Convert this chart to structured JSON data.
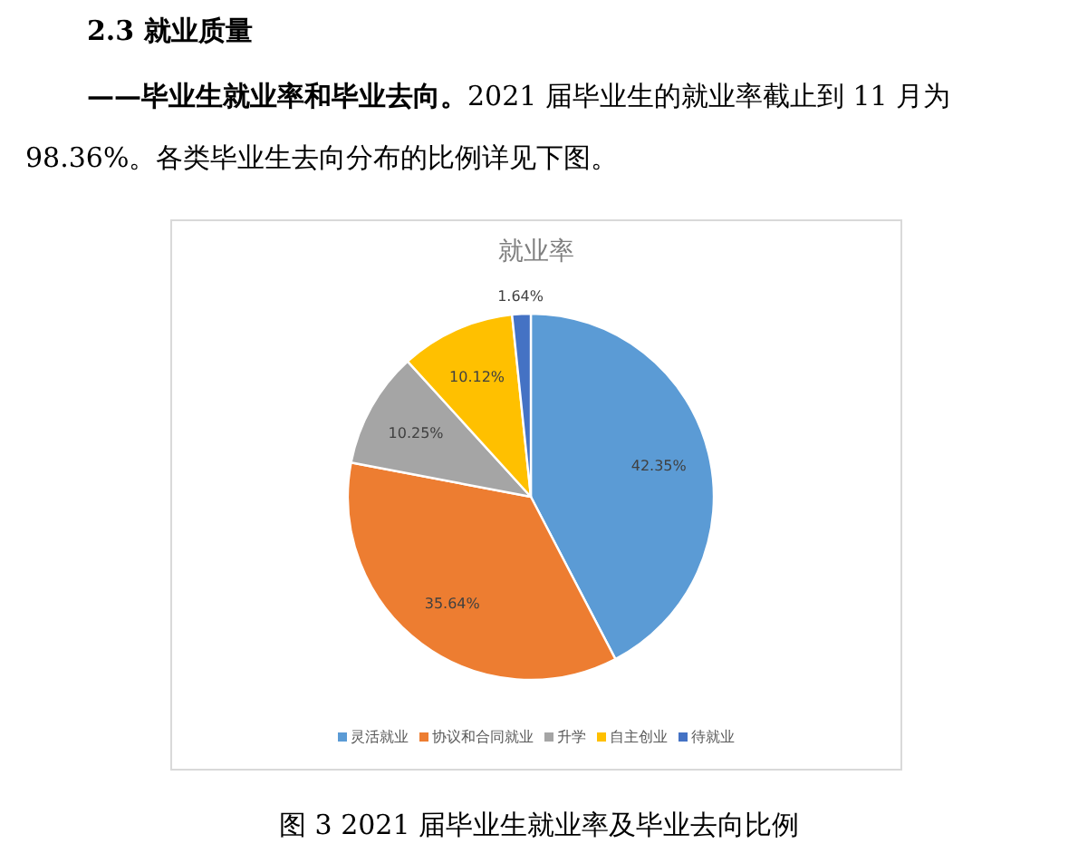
{
  "chart_data": {
    "type": "pie",
    "title": "就业率",
    "categories": [
      "灵活就业",
      "协议和合同就业",
      "升学",
      "自主创业",
      "待就业"
    ],
    "values": [
      42.35,
      35.64,
      10.25,
      10.12,
      1.64
    ],
    "colors": [
      "#5b9bd5",
      "#ed7d31",
      "#a5a5a5",
      "#ffc000",
      "#4472c4"
    ],
    "value_labels": [
      "42.35%",
      "35.64%",
      "10.25%",
      "10.12%",
      "1.64%"
    ],
    "legend": "bottom",
    "annotations": [
      "2.3  就业质量",
      "——毕业生就业率和毕业去向。",
      "2021 届毕业生的就业率截止到  11  月为  98.36%。各类毕业生去向分布的比例详见下图。",
      "图 3    2021 届毕业生就业率及毕业去向比例"
    ]
  }
}
